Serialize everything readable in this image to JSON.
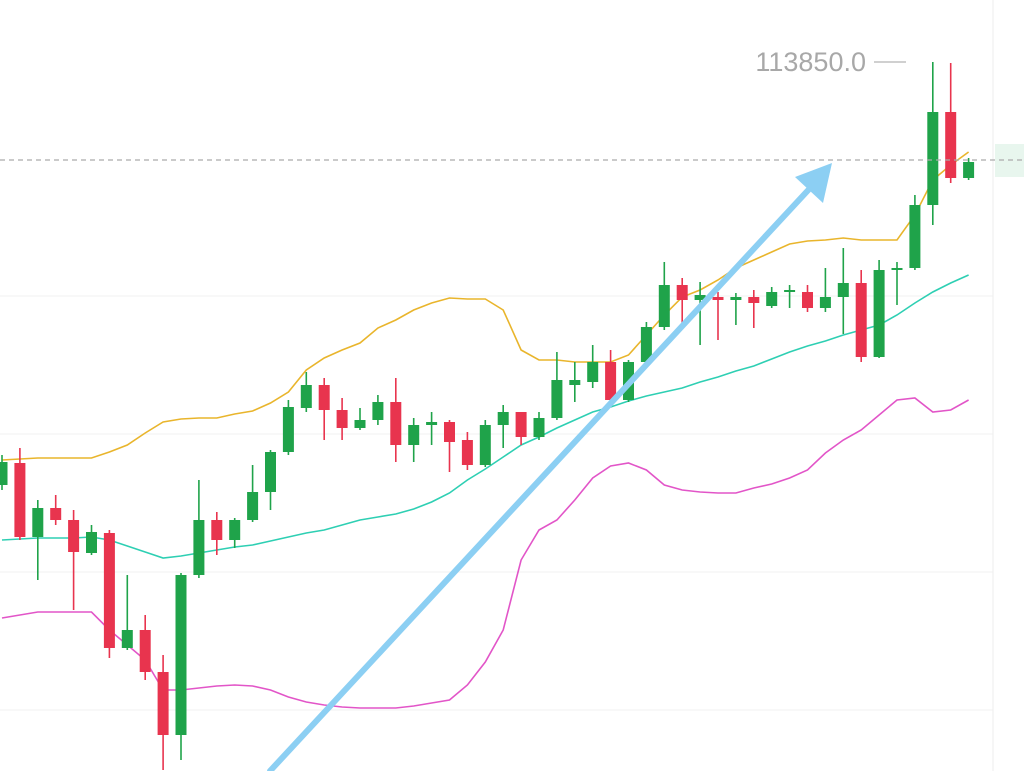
{
  "chart_data": {
    "type": "candlestick",
    "up_color": "#1fa34a",
    "down_color": "#e8344e",
    "ylim": [
      110305,
      114160
    ],
    "yticks": [
      110610,
      111300,
      111990,
      112680
    ],
    "grid": true,
    "price_line": 113360,
    "high_label": {
      "value": 113850,
      "label": "113850.0"
    },
    "open": [
      111735,
      111845,
      111475,
      111620,
      111560,
      111395,
      111495,
      110920,
      111010,
      110800,
      110485,
      111285,
      111560,
      111460,
      111560,
      111700,
      111900,
      112120,
      112235,
      112110,
      112020,
      112060,
      112150,
      111935,
      112035,
      112050,
      111960,
      111835,
      112035,
      112100,
      111975,
      112070,
      112235,
      112250,
      112350,
      112160,
      112350,
      112525,
      112735,
      112660,
      112675,
      112660,
      112675,
      112630,
      112700,
      112700,
      112620,
      112675,
      112745,
      112375,
      112810,
      112820,
      113135,
      113600,
      113270
    ],
    "high": [
      111885,
      111920,
      111660,
      111685,
      111610,
      111535,
      111510,
      111285,
      111085,
      110885,
      111295,
      111760,
      111600,
      111570,
      111835,
      111910,
      112160,
      112300,
      112270,
      112170,
      112120,
      112185,
      112270,
      112070,
      112100,
      112060,
      112000,
      112060,
      112135,
      112100,
      112100,
      112400,
      112350,
      112435,
      112410,
      112360,
      112550,
      112850,
      112770,
      112750,
      112700,
      112695,
      112710,
      112725,
      112735,
      112735,
      112820,
      112920,
      112810,
      112860,
      112850,
      113185,
      113850,
      113845,
      113370
    ],
    "low": [
      111710,
      111460,
      111260,
      111535,
      111110,
      111385,
      110870,
      110910,
      110760,
      110310,
      110360,
      111270,
      111385,
      111420,
      111550,
      111610,
      111885,
      112100,
      111960,
      111960,
      112010,
      112035,
      111850,
      111850,
      111935,
      111800,
      111810,
      111825,
      111920,
      111935,
      111960,
      112060,
      112150,
      112220,
      112150,
      112150,
      112335,
      112510,
      112520,
      112435,
      112460,
      112535,
      112520,
      112620,
      112620,
      112600,
      112600,
      112490,
      112350,
      112370,
      112635,
      112810,
      113035,
      113245,
      113260
    ],
    "close": [
      111850,
      111475,
      111620,
      111560,
      111400,
      111500,
      110920,
      111010,
      110800,
      110485,
      111285,
      111560,
      111460,
      111560,
      111700,
      111900,
      112125,
      112235,
      112110,
      112020,
      112060,
      112150,
      111935,
      112035,
      112050,
      111950,
      111835,
      112035,
      112100,
      111975,
      112070,
      112260,
      112260,
      112350,
      112160,
      112350,
      112525,
      112735,
      112660,
      112685,
      112660,
      112675,
      112645,
      112700,
      112710,
      112620,
      112675,
      112745,
      112375,
      112810,
      112820,
      113135,
      113600,
      113270,
      113350
    ],
    "lines": [
      {
        "color": "#e9b52c",
        "values": [
          111860,
          111865,
          111870,
          111870,
          111870,
          111870,
          111900,
          111935,
          111995,
          112050,
          112065,
          112070,
          112070,
          112090,
          112105,
          112145,
          112200,
          112310,
          112370,
          112410,
          112445,
          112520,
          112560,
          112610,
          112645,
          112670,
          112665,
          112665,
          112610,
          112410,
          112360,
          112360,
          112350,
          112350,
          112350,
          112385,
          112485,
          112585,
          112675,
          112710,
          112760,
          112820,
          112860,
          112900,
          112940,
          112955,
          112960,
          112970,
          112960,
          112960,
          112960,
          113085,
          113260,
          113335,
          113400
        ]
      },
      {
        "color": "#2ecfb3",
        "values": [
          111460,
          111465,
          111470,
          111470,
          111470,
          111475,
          111460,
          111430,
          111400,
          111370,
          111380,
          111395,
          111410,
          111425,
          111435,
          111455,
          111475,
          111495,
          111510,
          111535,
          111560,
          111575,
          111590,
          111615,
          111650,
          111695,
          111760,
          111815,
          111875,
          111935,
          111975,
          112020,
          112060,
          112100,
          112125,
          112155,
          112180,
          112200,
          112220,
          112250,
          112275,
          112305,
          112330,
          112365,
          112400,
          112430,
          112455,
          112485,
          112510,
          112535,
          112585,
          112645,
          112700,
          112745,
          112785
        ]
      },
      {
        "color": "#e255c8",
        "values": [
          111070,
          111085,
          111100,
          111100,
          111100,
          111100,
          111010,
          110935,
          110860,
          110710,
          110710,
          110720,
          110730,
          110735,
          110730,
          110710,
          110675,
          110650,
          110635,
          110625,
          110620,
          110620,
          110620,
          110630,
          110645,
          110660,
          110735,
          110850,
          111010,
          111360,
          111510,
          111560,
          111660,
          111770,
          111830,
          111845,
          111810,
          111735,
          111710,
          111700,
          111695,
          111695,
          111720,
          111740,
          111770,
          111810,
          111895,
          111960,
          112010,
          112085,
          112160,
          112170,
          112100,
          112110,
          112160
        ]
      }
    ]
  }
}
